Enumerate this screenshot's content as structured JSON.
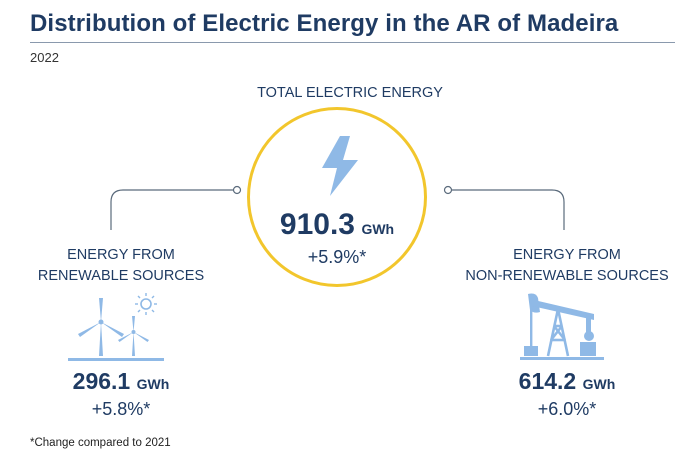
{
  "header": {
    "title": "Distribution of Electric Energy in the AR of Madeira",
    "year": "2022"
  },
  "total": {
    "label": "TOTAL ELECTRIC ENERGY",
    "value": "910.3",
    "unit": "GWh",
    "change": "+5.9%*",
    "icon": "lightning-bolt-icon"
  },
  "renewable": {
    "label_line1": "ENERGY FROM",
    "label_line2": "RENEWABLE SOURCES",
    "value": "296.1",
    "unit": "GWh",
    "change": "+5.8%*",
    "icon": "wind-turbines-sun-icon"
  },
  "non_renewable": {
    "label_line1": "ENERGY FROM",
    "label_line2": "NON-RENEWABLE SOURCES",
    "value": "614.2",
    "unit": "GWh",
    "change": "+6.0%*",
    "icon": "oil-pump-icon"
  },
  "footnote": "*Change compared to 2021",
  "colors": {
    "navy": "#1f3b63",
    "accent_yellow": "#f2c62c",
    "icon_blue": "#8fb9e6",
    "connector_gray": "#5b6b7c"
  }
}
